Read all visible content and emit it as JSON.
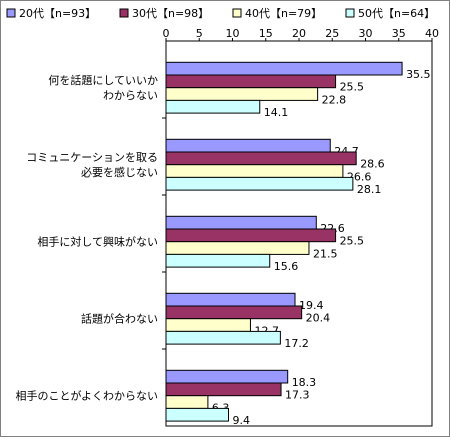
{
  "chart_data": {
    "type": "bar",
    "orientation": "horizontal",
    "title": "",
    "xlabel": "",
    "ylabel": "",
    "xlim": [
      0,
      40
    ],
    "x_ticks": [
      0,
      5,
      10,
      15,
      20,
      25,
      30,
      35,
      40
    ],
    "grid": false,
    "legend_position": "top",
    "categories": [
      "何を話題にしていいか\nわからない",
      "コミュニケーションを取る\n必要を感じない",
      "相手に対して興味がない",
      "話題が合わない",
      "相手のことがよくわからない"
    ],
    "series": [
      {
        "name": "20代【n=93】",
        "color": "#9999ff",
        "values": [
          35.5,
          24.7,
          22.6,
          19.4,
          18.3
        ]
      },
      {
        "name": "30代【n=98】",
        "color": "#993366",
        "values": [
          25.5,
          28.6,
          25.5,
          20.4,
          17.3
        ]
      },
      {
        "name": "40代【n=79】",
        "color": "#ffffcc",
        "values": [
          22.8,
          26.6,
          21.5,
          12.7,
          6.3
        ]
      },
      {
        "name": "50代【n=64】",
        "color": "#ccffff",
        "values": [
          14.1,
          28.1,
          15.6,
          17.2,
          9.4
        ]
      }
    ]
  }
}
